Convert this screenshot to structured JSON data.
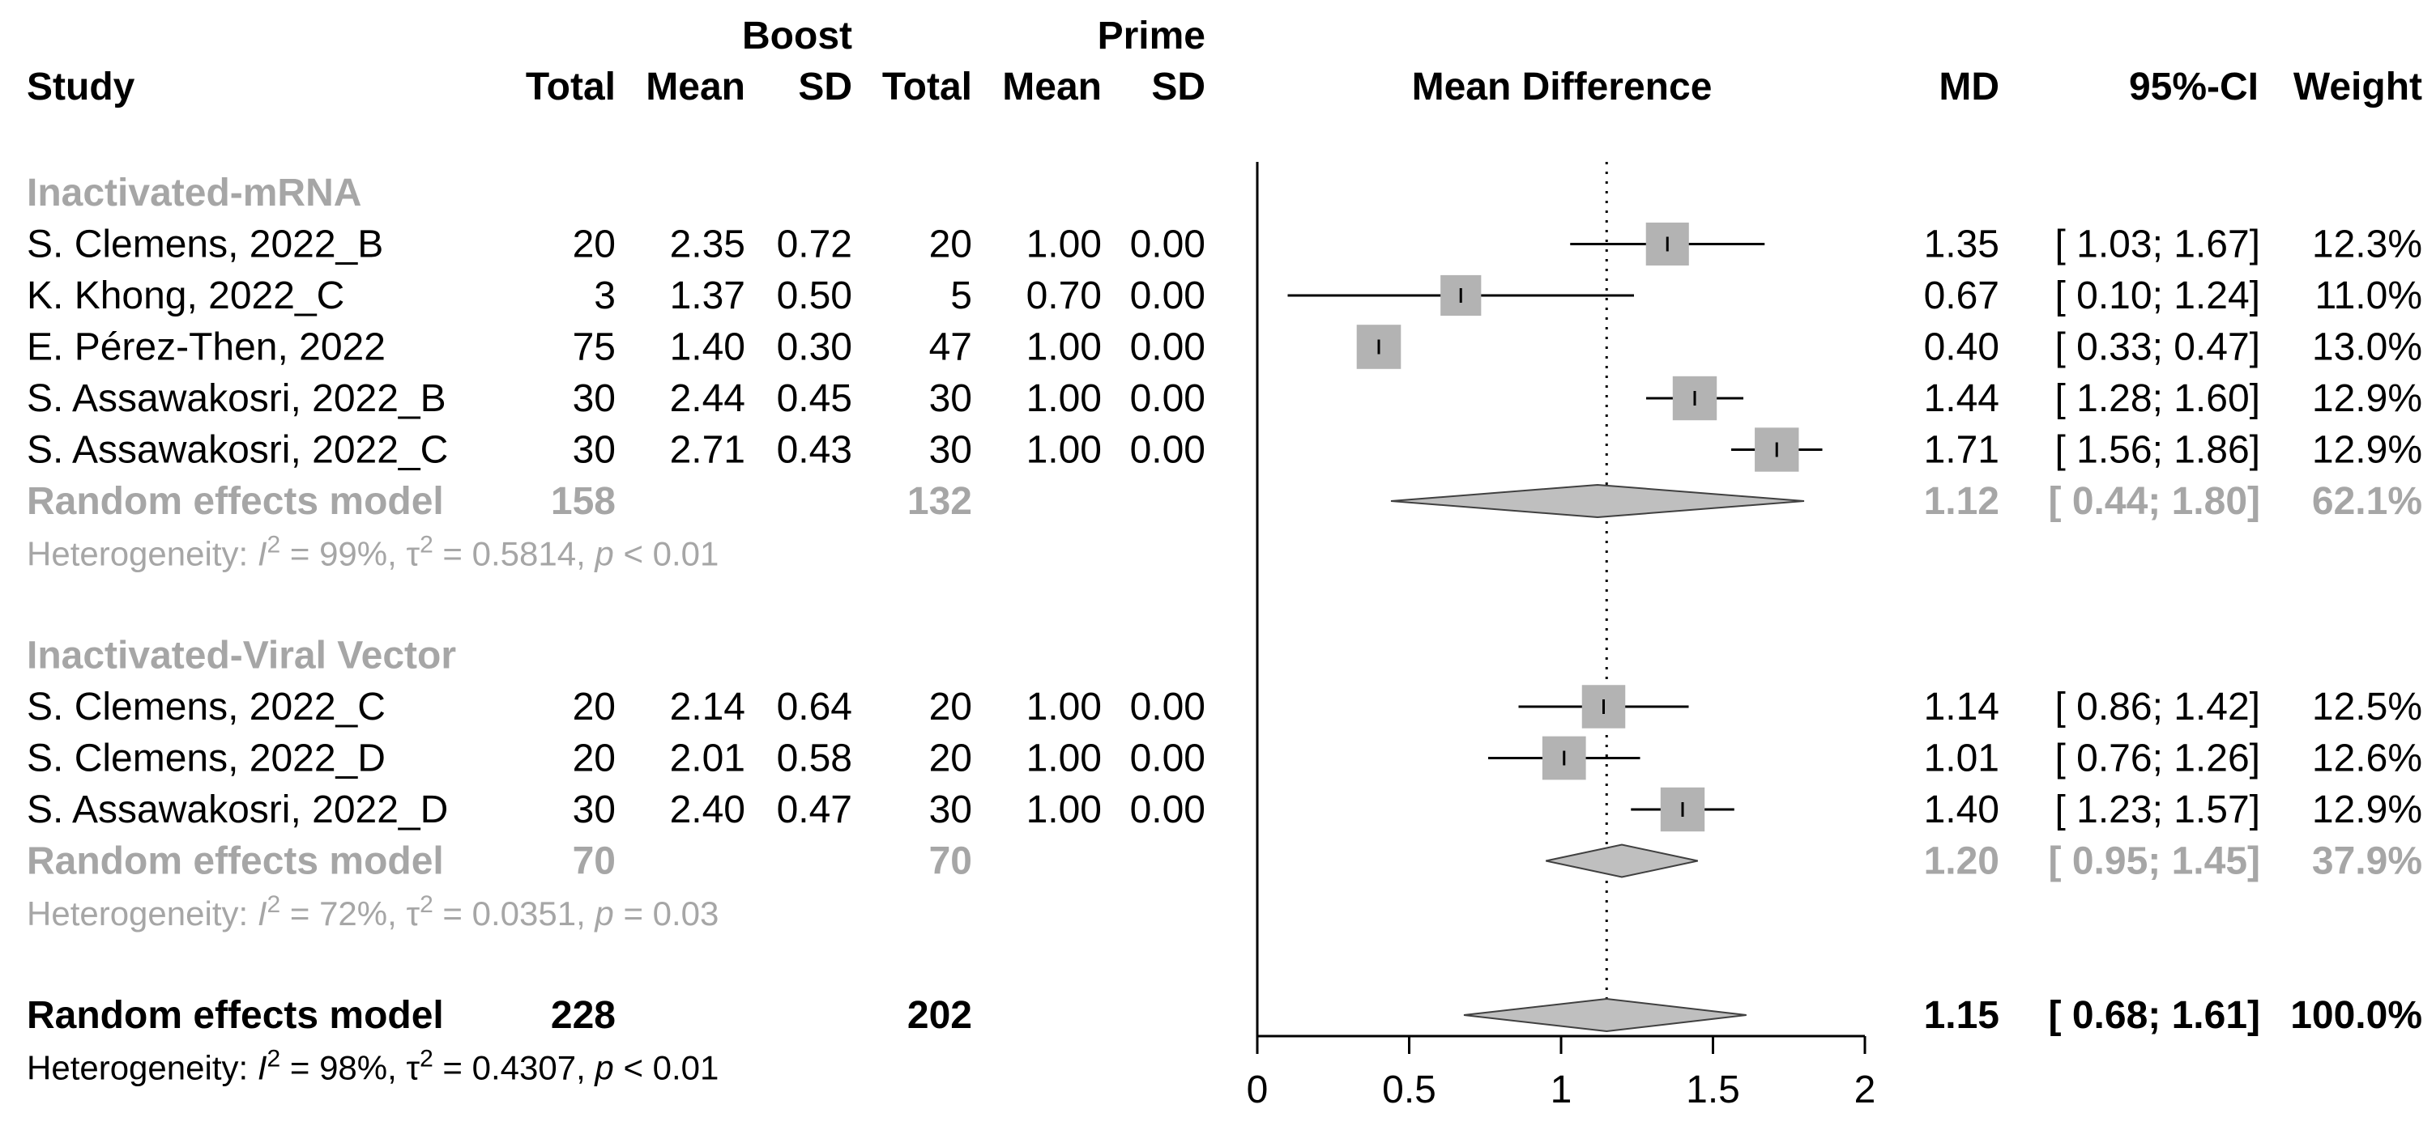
{
  "chart_data": {
    "type": "forest",
    "group_headers": {
      "boost": "Boost",
      "prime": "Prime"
    },
    "columns": {
      "study": "Study",
      "total_b": "Total",
      "mean_b": "Mean",
      "sd_b": "SD",
      "total_p": "Total",
      "mean_p": "Mean",
      "sd_p": "SD",
      "plot": "Mean Difference",
      "md": "MD",
      "ci": "95%-CI",
      "weight": "Weight"
    },
    "xlim": [
      0,
      2
    ],
    "xticks": [
      0,
      0.5,
      1,
      1.5,
      2
    ],
    "xtick_labels": [
      "0",
      "0.5",
      "1",
      "1.5",
      "2"
    ],
    "reference_line": 1.15,
    "subgroups": [
      {
        "name": "Inactivated-mRNA",
        "studies": [
          {
            "study": "S. Clemens, 2022_B",
            "total_b": "20",
            "mean_b": "2.35",
            "sd_b": "0.72",
            "total_p": "20",
            "mean_p": "1.00",
            "sd_p": "0.00",
            "md": 1.35,
            "lo": 1.03,
            "hi": 1.67,
            "md_text": "1.35",
            "ci_text": "[ 1.03; 1.67]",
            "weight_text": "12.3%",
            "weight": 12.3
          },
          {
            "study": "K. Khong, 2022_C",
            "total_b": "3",
            "mean_b": "1.37",
            "sd_b": "0.50",
            "total_p": "5",
            "mean_p": "0.70",
            "sd_p": "0.00",
            "md": 0.67,
            "lo": 0.1,
            "hi": 1.24,
            "md_text": "0.67",
            "ci_text": "[ 0.10; 1.24]",
            "weight_text": "11.0%",
            "weight": 11.0
          },
          {
            "study": "E. Pérez-Then, 2022",
            "total_b": "75",
            "mean_b": "1.40",
            "sd_b": "0.30",
            "total_p": "47",
            "mean_p": "1.00",
            "sd_p": "0.00",
            "md": 0.4,
            "lo": 0.33,
            "hi": 0.47,
            "md_text": "0.40",
            "ci_text": "[ 0.33; 0.47]",
            "weight_text": "13.0%",
            "weight": 13.0
          },
          {
            "study": "S. Assawakosri, 2022_B",
            "total_b": "30",
            "mean_b": "2.44",
            "sd_b": "0.45",
            "total_p": "30",
            "mean_p": "1.00",
            "sd_p": "0.00",
            "md": 1.44,
            "lo": 1.28,
            "hi": 1.6,
            "md_text": "1.44",
            "ci_text": "[ 1.28; 1.60]",
            "weight_text": "12.9%",
            "weight": 12.9
          },
          {
            "study": "S. Assawakosri, 2022_C",
            "total_b": "30",
            "mean_b": "2.71",
            "sd_b": "0.43",
            "total_p": "30",
            "mean_p": "1.00",
            "sd_p": "0.00",
            "md": 1.71,
            "lo": 1.56,
            "hi": 1.86,
            "md_text": "1.71",
            "ci_text": "[ 1.56; 1.86]",
            "weight_text": "12.9%",
            "weight": 12.9
          }
        ],
        "model": {
          "label": "Random effects model",
          "total_b": "158",
          "total_p": "132",
          "md": 1.12,
          "lo": 0.44,
          "hi": 1.8,
          "md_text": "1.12",
          "ci_text": "[ 0.44; 1.80]",
          "weight_text": "62.1%"
        },
        "heterogeneity": {
          "prefix": "Heterogeneity: ",
          "i2_label": "I",
          "i2_sup": "2",
          "i2_value": " = 99%, ",
          "tau_label": "τ",
          "tau_sup": "2",
          "tau_value": " = 0.5814, ",
          "p_label": "p",
          "p_value": " < 0.01"
        }
      },
      {
        "name": "Inactivated-Viral Vector",
        "studies": [
          {
            "study": "S. Clemens, 2022_C",
            "total_b": "20",
            "mean_b": "2.14",
            "sd_b": "0.64",
            "total_p": "20",
            "mean_p": "1.00",
            "sd_p": "0.00",
            "md": 1.14,
            "lo": 0.86,
            "hi": 1.42,
            "md_text": "1.14",
            "ci_text": "[ 0.86; 1.42]",
            "weight_text": "12.5%",
            "weight": 12.5
          },
          {
            "study": "S. Clemens, 2022_D",
            "total_b": "20",
            "mean_b": "2.01",
            "sd_b": "0.58",
            "total_p": "20",
            "mean_p": "1.00",
            "sd_p": "0.00",
            "md": 1.01,
            "lo": 0.76,
            "hi": 1.26,
            "md_text": "1.01",
            "ci_text": "[ 0.76; 1.26]",
            "weight_text": "12.6%",
            "weight": 12.6
          },
          {
            "study": "S. Assawakosri, 2022_D",
            "total_b": "30",
            "mean_b": "2.40",
            "sd_b": "0.47",
            "total_p": "30",
            "mean_p": "1.00",
            "sd_p": "0.00",
            "md": 1.4,
            "lo": 1.23,
            "hi": 1.57,
            "md_text": "1.40",
            "ci_text": "[ 1.23; 1.57]",
            "weight_text": "12.9%",
            "weight": 12.9
          }
        ],
        "model": {
          "label": "Random effects model",
          "total_b": "70",
          "total_p": "70",
          "md": 1.2,
          "lo": 0.95,
          "hi": 1.45,
          "md_text": "1.20",
          "ci_text": "[ 0.95; 1.45]",
          "weight_text": "37.9%"
        },
        "heterogeneity": {
          "prefix": "Heterogeneity: ",
          "i2_label": "I",
          "i2_sup": "2",
          "i2_value": " = 72%, ",
          "tau_label": "τ",
          "tau_sup": "2",
          "tau_value": " = 0.0351, ",
          "p_label": "p",
          "p_value": " = 0.03"
        }
      }
    ],
    "overall": {
      "model": {
        "label": "Random effects model",
        "total_b": "228",
        "total_p": "202",
        "md": 1.15,
        "lo": 0.68,
        "hi": 1.61,
        "md_text": "1.15",
        "ci_text": "[ 0.68; 1.61]",
        "weight_text": "100.0%"
      },
      "heterogeneity": {
        "prefix": "Heterogeneity: ",
        "i2_label": "I",
        "i2_sup": "2",
        "i2_value": " = 98%, ",
        "tau_label": "τ",
        "tau_sup": "2",
        "tau_value": " = 0.4307, ",
        "p_label": "p",
        "p_value": " < 0.01"
      }
    },
    "colors": {
      "text": "#000000",
      "subgroup": "#a6a6a6",
      "square": "#b3b3b3",
      "diamond": "#bfbfbf",
      "line": "#000000"
    }
  }
}
